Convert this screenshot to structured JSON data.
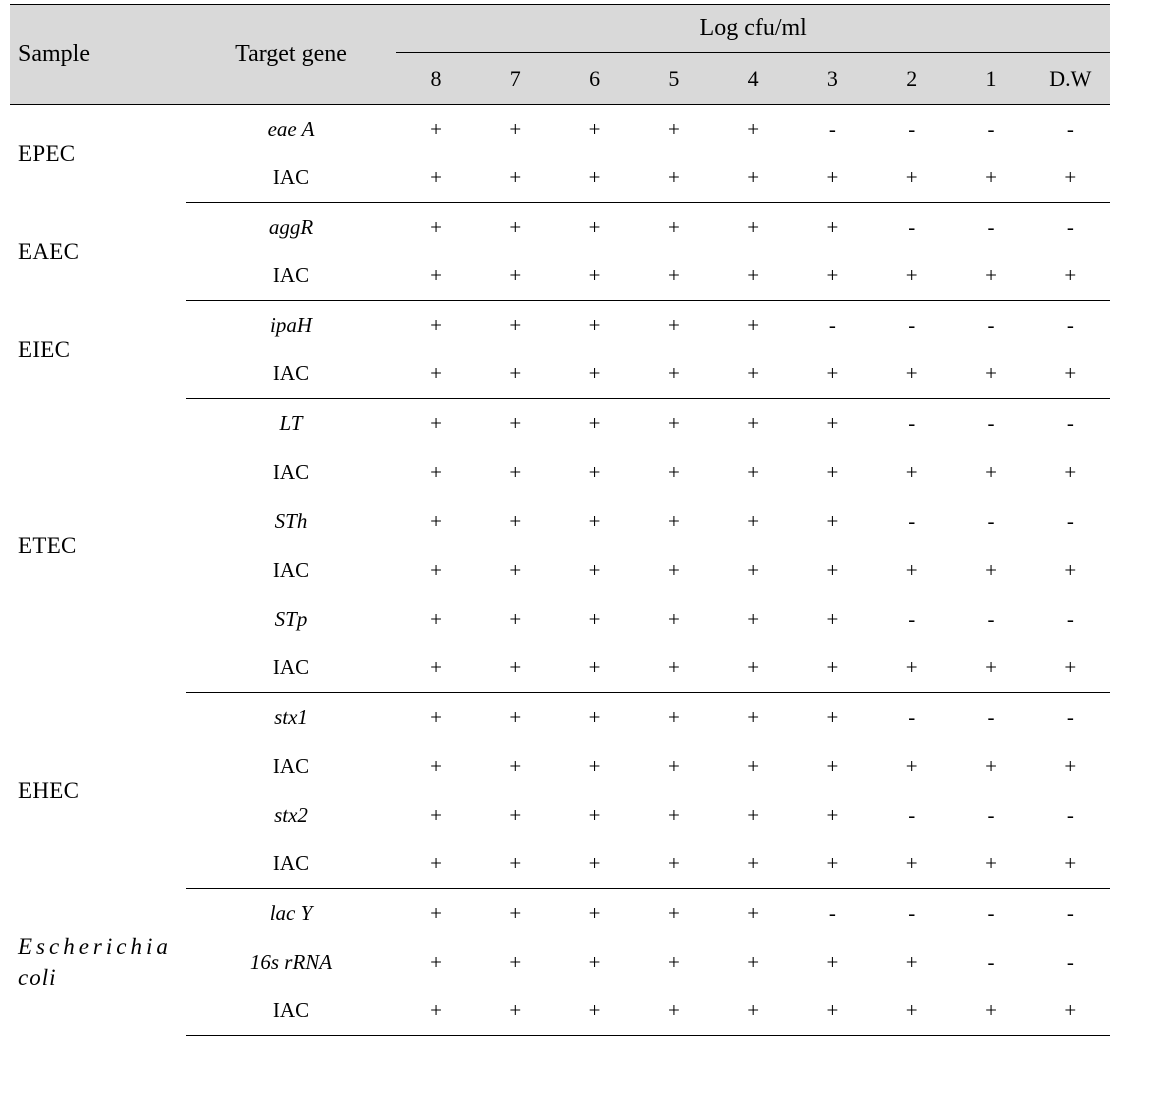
{
  "header": {
    "sample": "Sample",
    "target": "Target gene",
    "group": "Log cfu/ml",
    "cols": [
      "8",
      "7",
      "6",
      "5",
      "4",
      "3",
      "2",
      "1",
      "D.W"
    ]
  },
  "groups": [
    {
      "sample": "EPEC",
      "sample_html": "EPEC",
      "rows": [
        {
          "target": "eae A",
          "italic": true,
          "vals": [
            "+",
            "+",
            "+",
            "+",
            "+",
            "-",
            "-",
            "-",
            "-"
          ]
        },
        {
          "target": "IAC",
          "italic": false,
          "vals": [
            "+",
            "+",
            "+",
            "+",
            "+",
            "+",
            "+",
            "+",
            "+"
          ]
        }
      ]
    },
    {
      "sample": "EAEC",
      "sample_html": "EAEC",
      "rows": [
        {
          "target": "aggR",
          "italic": true,
          "vals": [
            "+",
            "+",
            "+",
            "+",
            "+",
            "+",
            "-",
            "-",
            "-"
          ]
        },
        {
          "target": "IAC",
          "italic": false,
          "vals": [
            "+",
            "+",
            "+",
            "+",
            "+",
            "+",
            "+",
            "+",
            "+"
          ]
        }
      ]
    },
    {
      "sample": "EIEC",
      "sample_html": "EIEC",
      "rows": [
        {
          "target": "ipaH",
          "italic": true,
          "vals": [
            "+",
            "+",
            "+",
            "+",
            "+",
            "-",
            "-",
            "-",
            "-"
          ]
        },
        {
          "target": "IAC",
          "italic": false,
          "vals": [
            "+",
            "+",
            "+",
            "+",
            "+",
            "+",
            "+",
            "+",
            "+"
          ]
        }
      ]
    },
    {
      "sample": "ETEC",
      "sample_html": "ETEC",
      "rows": [
        {
          "target": "LT",
          "italic": true,
          "vals": [
            "+",
            "+",
            "+",
            "+",
            "+",
            "+",
            "-",
            "-",
            "-"
          ]
        },
        {
          "target": "IAC",
          "italic": false,
          "vals": [
            "+",
            "+",
            "+",
            "+",
            "+",
            "+",
            "+",
            "+",
            "+"
          ]
        },
        {
          "target": "STh",
          "italic": true,
          "vals": [
            "+",
            "+",
            "+",
            "+",
            "+",
            "+",
            "-",
            "-",
            "-"
          ]
        },
        {
          "target": "IAC",
          "italic": false,
          "vals": [
            "+",
            "+",
            "+",
            "+",
            "+",
            "+",
            "+",
            "+",
            "+"
          ]
        },
        {
          "target": "STp",
          "italic": true,
          "vals": [
            "+",
            "+",
            "+",
            "+",
            "+",
            "+",
            "-",
            "-",
            "-"
          ]
        },
        {
          "target": "IAC",
          "italic": false,
          "vals": [
            "+",
            "+",
            "+",
            "+",
            "+",
            "+",
            "+",
            "+",
            "+"
          ]
        }
      ]
    },
    {
      "sample": "EHEC",
      "sample_html": "EHEC",
      "rows": [
        {
          "target": "stx1",
          "italic": true,
          "vals": [
            "+",
            "+",
            "+",
            "+",
            "+",
            "+",
            "-",
            "-",
            "-"
          ]
        },
        {
          "target": "IAC",
          "italic": false,
          "vals": [
            "+",
            "+",
            "+",
            "+",
            "+",
            "+",
            "+",
            "+",
            "+"
          ]
        },
        {
          "target": "stx2",
          "italic": true,
          "vals": [
            "+",
            "+",
            "+",
            "+",
            "+",
            "+",
            "-",
            "-",
            "-"
          ]
        },
        {
          "target": "IAC",
          "italic": false,
          "vals": [
            "+",
            "+",
            "+",
            "+",
            "+",
            "+",
            "+",
            "+",
            "+"
          ]
        }
      ]
    },
    {
      "sample": "Escherichia coli",
      "sample_html": "<span class=\"ecoli-name\">Escherichia<br><span class=\"coli\">coli</span></span>",
      "rows": [
        {
          "target": "lac Y",
          "italic": true,
          "vals": [
            "+",
            "+",
            "+",
            "+",
            "+",
            "-",
            "-",
            "-",
            "-"
          ]
        },
        {
          "target": "16s rRNA",
          "italic": true,
          "vals": [
            "+",
            "+",
            "+",
            "+",
            "+",
            "+",
            "+",
            "-",
            "-"
          ]
        },
        {
          "target": "IAC",
          "italic": false,
          "vals": [
            "+",
            "+",
            "+",
            "+",
            "+",
            "+",
            "+",
            "+",
            "+"
          ]
        }
      ]
    }
  ]
}
